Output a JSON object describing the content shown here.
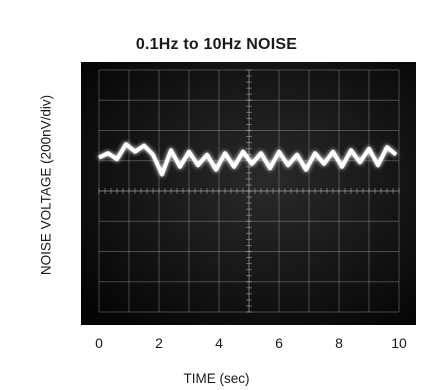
{
  "chart_data": {
    "type": "line",
    "title": "0.1Hz to 10Hz NOISE",
    "xlabel": "TIME (sec)",
    "ylabel": "NOISE VOLTAGE (200nV/div)",
    "x_ticks": [
      "0",
      "2",
      "4",
      "6",
      "8",
      "10"
    ],
    "xlim": [
      0,
      10
    ],
    "y_divisions": 8,
    "y_units_per_div": "200nV",
    "grid": true,
    "background": "oscilloscope (dark screen, light graticule)",
    "series": [
      {
        "x": [
          0.0,
          0.3,
          0.6,
          0.9,
          1.2,
          1.5,
          1.8,
          2.1,
          2.4,
          2.7,
          3.0,
          3.3,
          3.6,
          3.9,
          4.2,
          4.5,
          4.8,
          5.1,
          5.4,
          5.7,
          6.0,
          6.3,
          6.6,
          6.9,
          7.2,
          7.5,
          7.8,
          8.1,
          8.4,
          8.7,
          9.0,
          9.3,
          9.6,
          9.9
        ],
        "y": [
          0.1,
          0.25,
          0.05,
          0.55,
          0.3,
          0.5,
          0.2,
          -0.45,
          0.35,
          -0.2,
          0.3,
          -0.15,
          0.2,
          -0.3,
          0.25,
          -0.2,
          0.3,
          -0.1,
          0.25,
          -0.25,
          0.3,
          -0.15,
          0.2,
          -0.3,
          0.25,
          -0.1,
          0.3,
          -0.2,
          0.35,
          -0.05,
          0.4,
          -0.15,
          0.45,
          0.2
        ]
      }
    ]
  },
  "colors": {
    "screen": "#0b0b0b",
    "graticule": "#c8c8c8",
    "trace": "#ffffff"
  }
}
